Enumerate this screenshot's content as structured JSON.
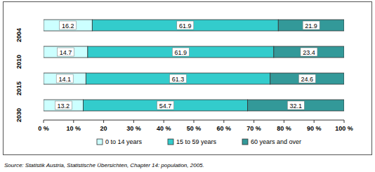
{
  "chart_data": {
    "type": "bar",
    "orientation": "horizontal",
    "stacked": true,
    "data_labels": true,
    "grid": false,
    "legend": "bottom",
    "categories": [
      "2004",
      "2010",
      "2015",
      "2030"
    ],
    "series": [
      {
        "name": "0 to 14 years",
        "color": "#ccffff",
        "values": [
          16.2,
          14.7,
          14.1,
          13.2
        ]
      },
      {
        "name": "15 to 59 years",
        "color": "#33cccc",
        "values": [
          61.9,
          61.9,
          61.3,
          54.7
        ]
      },
      {
        "name": "60 years and over",
        "color": "#339999",
        "values": [
          21.9,
          23.4,
          24.6,
          32.1
        ]
      }
    ],
    "xlim": [
      0,
      100
    ],
    "xticks": [
      {
        "value": 0,
        "label": "0 %"
      },
      {
        "value": 10,
        "label": "10 %"
      },
      20,
      {
        "value": 30,
        "label": "30 %"
      },
      {
        "value": 40,
        "label": "40 %"
      },
      {
        "value": 50,
        "label": "50 %"
      },
      {
        "value": 60,
        "label": "60 %"
      },
      {
        "value": 70,
        "label": "70 %"
      },
      {
        "value": 80,
        "label": "80 %"
      },
      {
        "value": 90,
        "label": "90 %"
      },
      {
        "value": 100,
        "label": "100 %"
      }
    ],
    "source": "Source: Statistik Austria, Statistische Übersichten, Chapter 14: population, 2005."
  }
}
